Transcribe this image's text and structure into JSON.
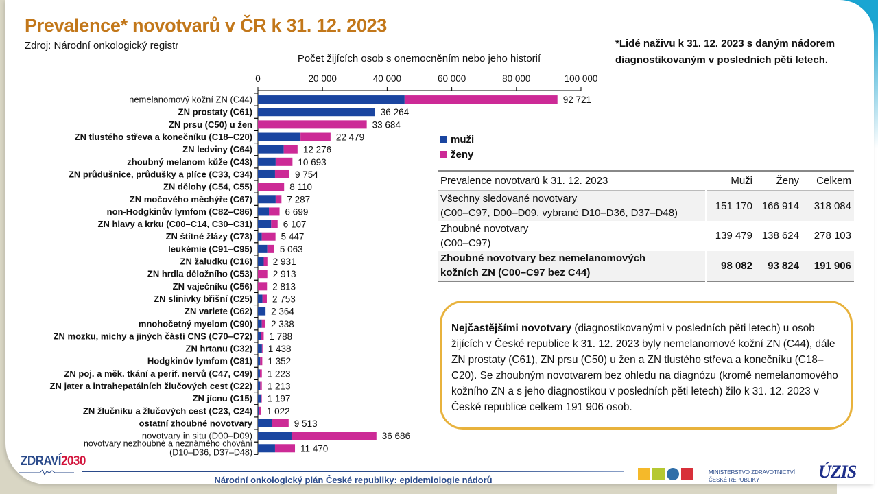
{
  "title": "Prevalence* novotvarů v ČR k 31. 12. 2023",
  "source": "Zdroj: Národní onkologický registr",
  "footnote": "*Lidé naživu k 31. 12. 2023 s daným nádorem diagnostikovaným v posledních pěti letech.",
  "colors": {
    "male": "#1a45a0",
    "female": "#cc2a96",
    "title": "#c2771a",
    "accent_border": "#e8b23c"
  },
  "legend": [
    {
      "label": "muži",
      "color": "#1a45a0"
    },
    {
      "label": "ženy",
      "color": "#cc2a96"
    }
  ],
  "chart_data": {
    "type": "bar",
    "orientation": "horizontal",
    "stacked": true,
    "title": "Počet žijících osob s onemocněním nebo jeho historií",
    "xlabel": "Počet žijících osob s onemocněním nebo jeho historií",
    "ylabel": "",
    "xlim": [
      0,
      100000
    ],
    "xticks": [
      0,
      20000,
      40000,
      60000,
      80000,
      100000
    ],
    "xtick_labels": [
      "0",
      "20 000",
      "40 000",
      "60 000",
      "80 000",
      "100 000"
    ],
    "legend_position": "right",
    "categories": [
      "nemelanomový kožní ZN (C44)",
      "ZN prostaty (C61)",
      "ZN prsu (C50) u žen",
      "ZN tlustého střeva a konečníku (C18–C20)",
      "ZN ledviny (C64)",
      "zhoubný melanom kůže (C43)",
      "ZN průdušnice, průdušky a plíce (C33, C34)",
      "ZN dělohy (C54, C55)",
      "ZN močového měchýře (C67)",
      "non-Hodgkinův lymfom (C82–C86)",
      "ZN hlavy a krku (C00–C14, C30–C31)",
      "ZN štítné žlázy (C73)",
      "leukémie (C91–C95)",
      "ZN žaludku (C16)",
      "ZN hrdla děložního (C53)",
      "ZN vaječníku (C56)",
      "ZN slinivky břišní (C25)",
      "ZN varlete (C62)",
      "mnohočetný myelom (C90)",
      "ZN mozku, míchy a jiných částí CNS (C70–C72)",
      "ZN hrtanu (C32)",
      "Hodgkinův lymfom (C81)",
      "ZN poj. a měk. tkání a perif. nervů (C47, C49)",
      "ZN jater a intrahepatálních žlučových cest (C22)",
      "ZN jícnu (C15)",
      "ZN žlučníku a žlučových cest (C23, C24)",
      "ostatní zhoubné novotvary",
      "novotvary in situ (D00–D09)",
      "novotvary nezhoubné a neznámého chování (D10–D36, D37–D48)"
    ],
    "category_lines": [
      [
        "nemelanomový kožní ZN (C44)"
      ],
      [
        "ZN prostaty (C61)"
      ],
      [
        "ZN prsu (C50) u žen"
      ],
      [
        "ZN tlustého střeva a konečníku (C18–C20)"
      ],
      [
        "ZN ledviny (C64)"
      ],
      [
        "zhoubný melanom kůže (C43)"
      ],
      [
        "ZN průdušnice, průdušky a plíce (C33, C34)"
      ],
      [
        "ZN dělohy (C54, C55)"
      ],
      [
        "ZN močového měchýře (C67)"
      ],
      [
        "non-Hodgkinův lymfom (C82–C86)"
      ],
      [
        "ZN hlavy a krku (C00–C14, C30–C31)"
      ],
      [
        "ZN štítné žlázy (C73)"
      ],
      [
        "leukémie (C91–C95)"
      ],
      [
        "ZN žaludku (C16)"
      ],
      [
        "ZN hrdla děložního (C53)"
      ],
      [
        "ZN vaječníku (C56)"
      ],
      [
        "ZN slinivky břišní (C25)"
      ],
      [
        "ZN varlete (C62)"
      ],
      [
        "mnohočetný myelom (C90)"
      ],
      [
        "ZN mozku, míchy a jiných částí CNS (C70–C72)"
      ],
      [
        "ZN hrtanu (C32)"
      ],
      [
        "Hodgkinův lymfom (C81)"
      ],
      [
        "ZN poj. a měk. tkání a perif. nervů (C47, C49)"
      ],
      [
        "ZN jater a intrahepatálních žlučových cest (C22)"
      ],
      [
        "ZN jícnu (C15)"
      ],
      [
        "ZN žlučníku a žlučových cest (C23, C24)"
      ],
      [
        "ostatní zhoubné novotvary"
      ],
      [
        "novotvary in situ (D00–D09)"
      ],
      [
        "novotvary nezhoubné a neznámého chování",
        "(D10–D36, D37–D48)"
      ]
    ],
    "category_bold": [
      false,
      true,
      true,
      true,
      true,
      true,
      true,
      true,
      true,
      true,
      true,
      true,
      true,
      true,
      true,
      true,
      true,
      true,
      true,
      true,
      true,
      true,
      true,
      true,
      true,
      true,
      true,
      false,
      false
    ],
    "series": [
      {
        "name": "muži",
        "values": [
          45400,
          36264,
          0,
          13200,
          8000,
          5500,
          5300,
          0,
          5500,
          3400,
          4100,
          1200,
          2900,
          1800,
          0,
          0,
          1400,
          2364,
          1200,
          950,
          1250,
          700,
          630,
          700,
          900,
          350,
          4400,
          10400,
          5300
        ]
      },
      {
        "name": "ženy",
        "values": [
          47321,
          0,
          33684,
          9279,
          4276,
          5193,
          4454,
          8110,
          1787,
          3299,
          2007,
          4247,
          2163,
          1131,
          2913,
          2813,
          1353,
          0,
          1138,
          838,
          188,
          652,
          593,
          513,
          297,
          672,
          5113,
          26286,
          6170
        ]
      }
    ],
    "totals": [
      92721,
      36264,
      33684,
      22479,
      12276,
      10693,
      9754,
      8110,
      7287,
      6699,
      6107,
      5447,
      5063,
      2931,
      2913,
      2813,
      2753,
      2364,
      2338,
      1788,
      1438,
      1352,
      1223,
      1213,
      1197,
      1022,
      9513,
      36686,
      11470
    ],
    "total_labels": [
      "92 721",
      "36 264",
      "33 684",
      "22 479",
      "12 276",
      "10 693",
      "9 754",
      "8 110",
      "7 287",
      "6 699",
      "6 107",
      "5 447",
      "5 063",
      "2 931",
      "2 913",
      "2 813",
      "2 753",
      "2 364",
      "2 338",
      "1 788",
      "1 438",
      "1 352",
      "1 223",
      "1 213",
      "1 197",
      "1 022",
      "9 513",
      "36 686",
      "11 470"
    ]
  },
  "summary_table": {
    "headers": [
      "Prevalence novotvarů k 31. 12. 2023",
      "Muži",
      "Ženy",
      "Celkem"
    ],
    "rows": [
      {
        "label": "Všechny sledované novotvary (C00–C97, D00–D09, vybrané D10–D36, D37–D48)",
        "label_line1": "Všechny sledované novotvary",
        "label_line2": "(C00–C97, D00–D09, vybrané D10–D36, D37–D48)",
        "muzi": "151 170",
        "zeny": "166 914",
        "celkem": "318 084",
        "bold": false
      },
      {
        "label": "Zhoubné novotvary (C00–C97)",
        "label_line1": "Zhoubné novotvary",
        "label_line2": "(C00–C97)",
        "muzi": "139 479",
        "zeny": "138 624",
        "celkem": "278 103",
        "bold": false
      },
      {
        "label": "Zhoubné novotvary bez nemelanomových kožních ZN (C00–C97 bez C44)",
        "label_line1": "Zhoubné novotvary bez nemelanomových",
        "label_line2": "kožních ZN (C00–C97 bez C44)",
        "muzi": "98 082",
        "zeny": "93 824",
        "celkem": "191 906",
        "bold": true
      }
    ]
  },
  "infobox": {
    "bold_lead": "Nejčastějšími novotvary",
    "text": " (diagnostikovanými v posledních pěti letech) u osob žijících v České republice k 31. 12. 2023 byly nemelanomové kožní ZN (C44), dále ZN prostaty (C61), ZN prsu (C50) u žen a ZN tlustého střeva a konečníku (C18–C20). Se zhoubným novotvarem bez ohledu na diagnózu (kromě nemelanomového kožního ZN a s jeho diagnostikou v posledních pěti letech) žilo k 31. 12. 2023 v České republice celkem 191 906 osob."
  },
  "footer": {
    "text": "Národní onkologický plán České republiky: epidemiologie nádorů",
    "logo_left_a": "ZDRAVÍ",
    "logo_left_b": "2030",
    "ministry_line1": "MINISTERSTVO ZDRAVOTNICTVÍ",
    "ministry_line2": "ČESKÉ REPUBLIKY",
    "logo_right": "ÚZIS"
  }
}
